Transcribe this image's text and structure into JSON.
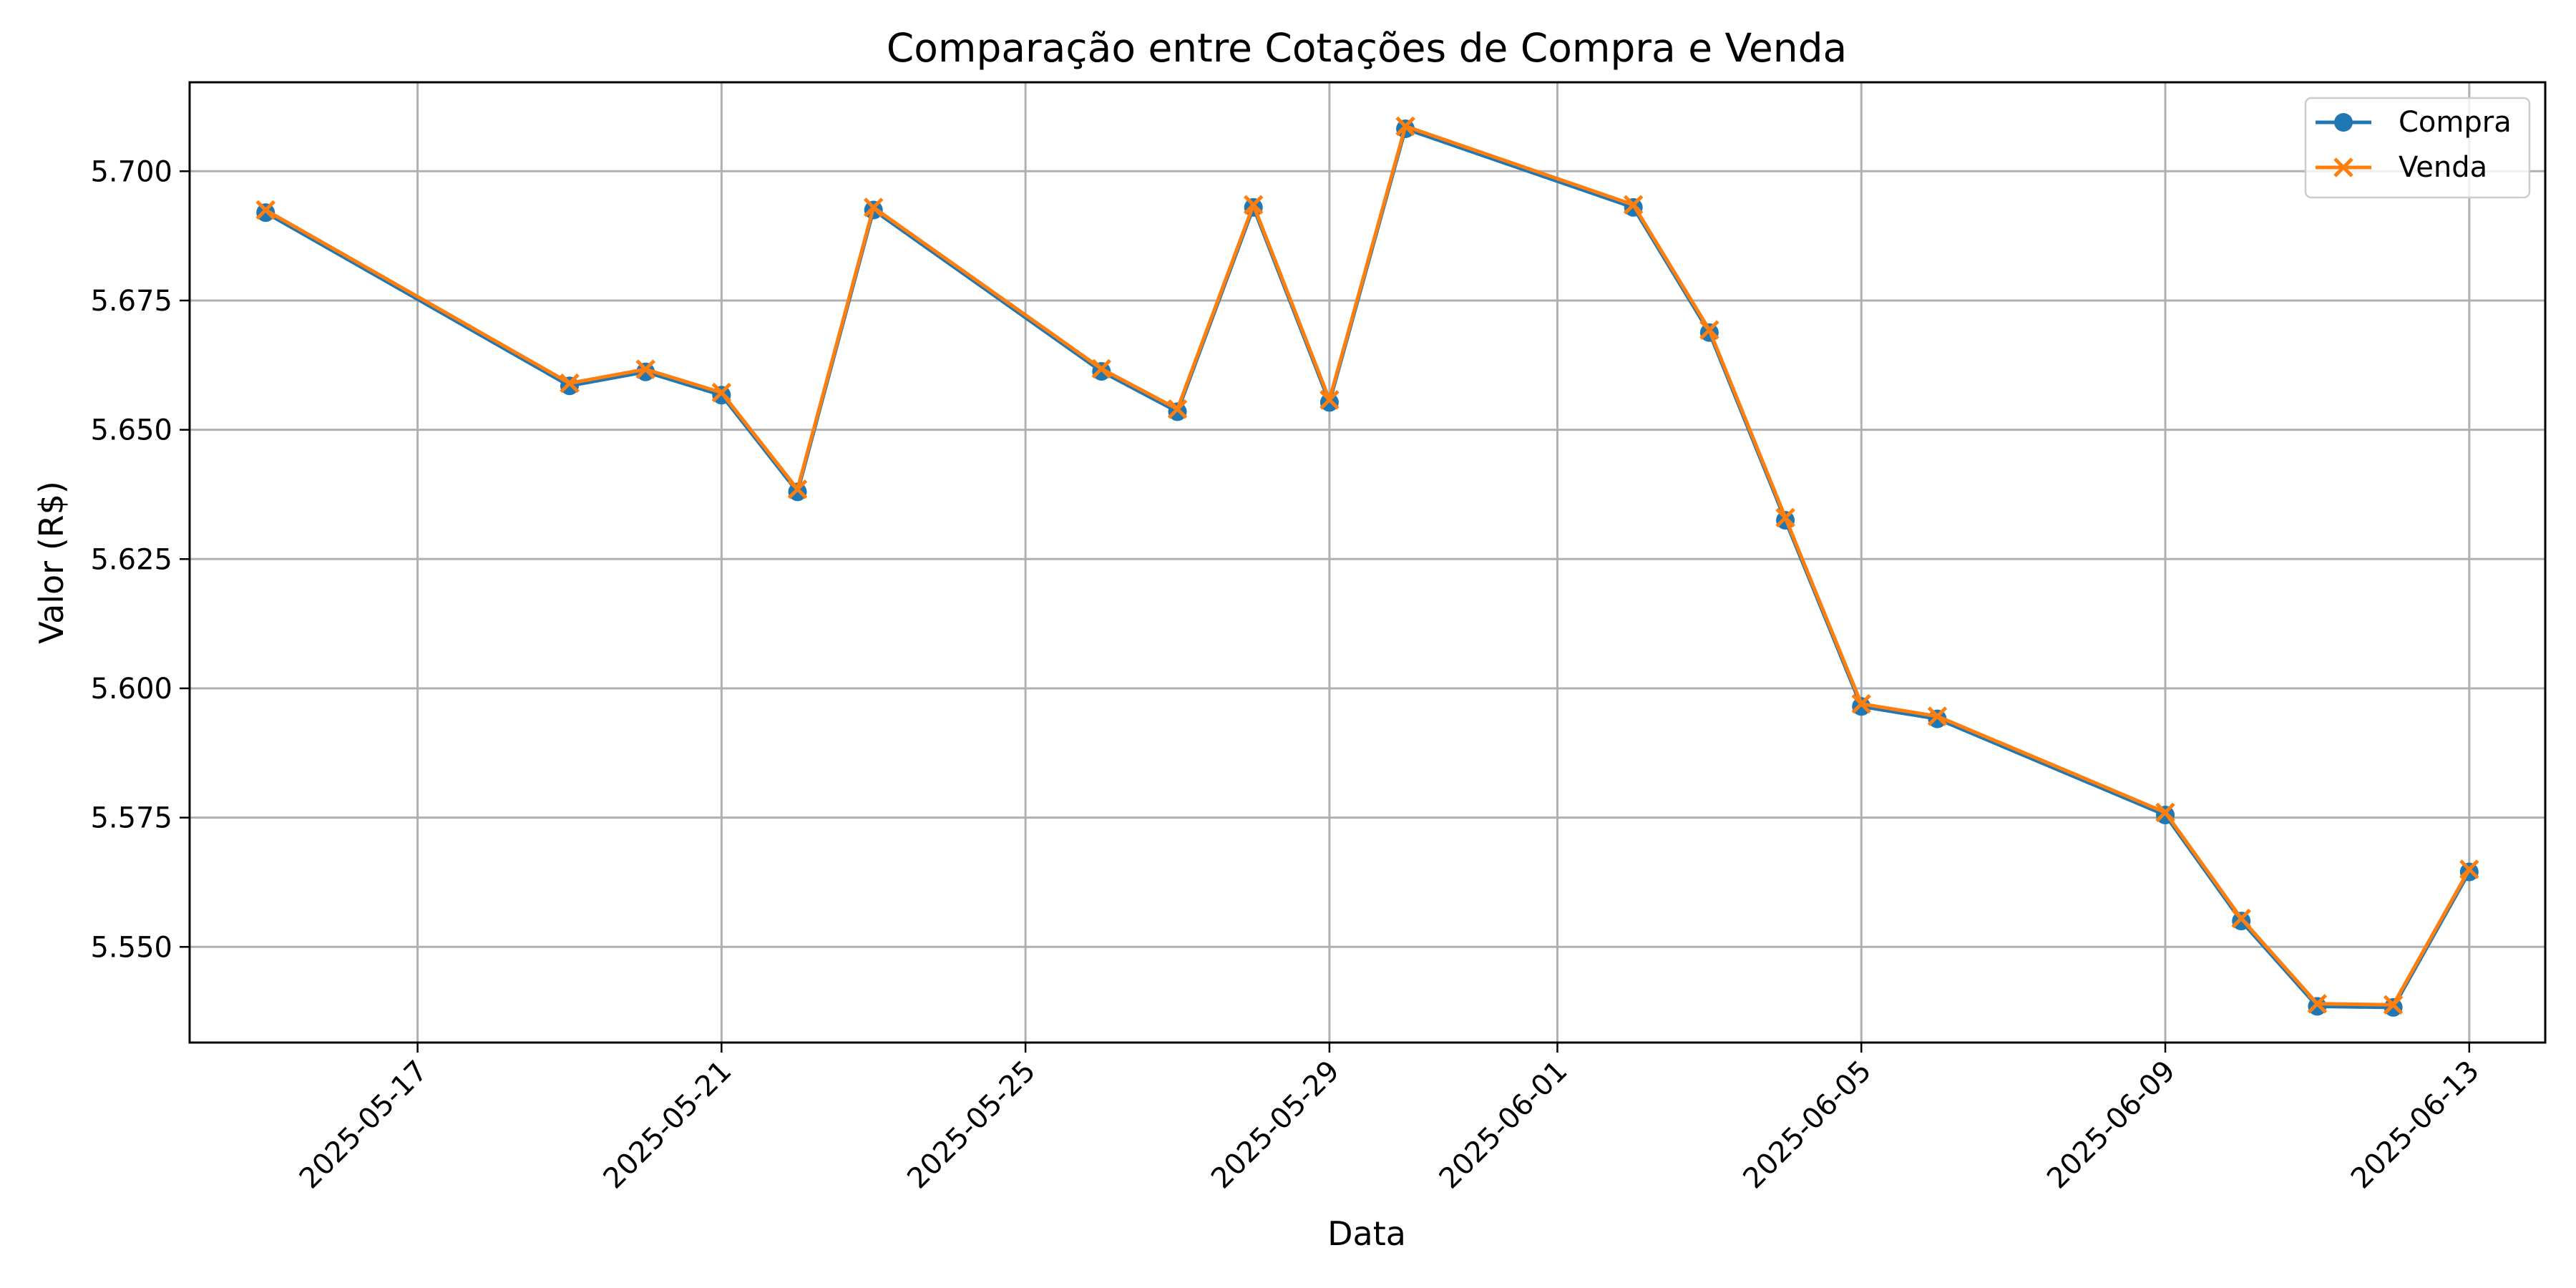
{
  "chart_data": {
    "type": "line",
    "title": "Comparação entre Cotações de Compra e Venda",
    "xlabel": "Data",
    "ylabel": "Valor (R$)",
    "x_tick_labels": [
      "2025-05-17",
      "2025-05-21",
      "2025-05-25",
      "2025-05-29",
      "2025-06-01",
      "2025-06-05",
      "2025-06-09",
      "2025-06-13"
    ],
    "y_tick_labels": [
      "5.550",
      "5.575",
      "5.600",
      "5.625",
      "5.650",
      "5.675",
      "5.700"
    ],
    "ylim": [
      5.5315,
      5.7172
    ],
    "xlim": [
      "2025-05-14",
      "2025-06-14"
    ],
    "grid": true,
    "legend_position": "top-right",
    "x": [
      "2025-05-15",
      "2025-05-19",
      "2025-05-20",
      "2025-05-21",
      "2025-05-22",
      "2025-05-23",
      "2025-05-26",
      "2025-05-27",
      "2025-05-28",
      "2025-05-29",
      "2025-05-30",
      "2025-06-02",
      "2025-06-03",
      "2025-06-04",
      "2025-06-05",
      "2025-06-06",
      "2025-06-09",
      "2025-06-10",
      "2025-06-11",
      "2025-06-12",
      "2025-06-13"
    ],
    "series": [
      {
        "name": "Compra",
        "color": "#1f77b4",
        "marker": "circle",
        "values": [
          5.692,
          5.6585,
          5.6612,
          5.6567,
          5.638,
          5.6925,
          5.6613,
          5.6535,
          5.693,
          5.6553,
          5.7082,
          5.693,
          5.6688,
          5.6325,
          5.5965,
          5.5941,
          5.5755,
          5.555,
          5.5385,
          5.5383,
          5.5645
        ]
      },
      {
        "name": "Venda",
        "color": "#ff7f0e",
        "marker": "x",
        "values": [
          5.6925,
          5.659,
          5.6617,
          5.6572,
          5.6385,
          5.693,
          5.6618,
          5.654,
          5.6935,
          5.6558,
          5.7087,
          5.6935,
          5.6693,
          5.633,
          5.597,
          5.5946,
          5.576,
          5.5555,
          5.539,
          5.5388,
          5.565
        ]
      }
    ]
  }
}
